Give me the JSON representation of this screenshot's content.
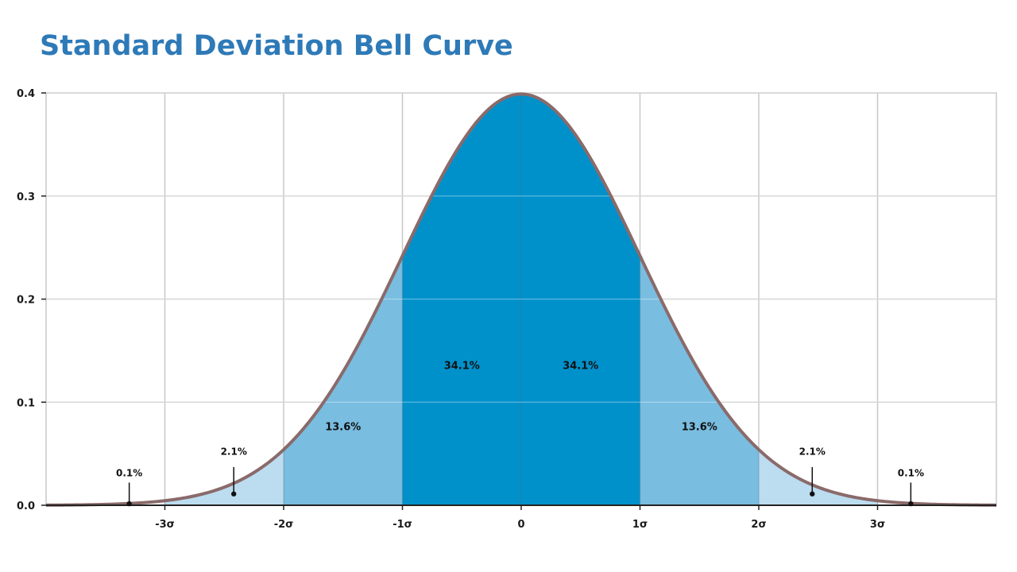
{
  "title": "Standard Deviation Bell Curve",
  "colors": {
    "title": "#2e7ab8",
    "inner": "#0091cb",
    "middle": "#79bde0",
    "outer": "#bcdcf0",
    "curve": "#8a6a6a",
    "grid": "#c8c8c8"
  },
  "chart_data": {
    "type": "area",
    "title": "Standard Deviation Bell Curve",
    "xlim": [
      -4,
      4
    ],
    "ylim": [
      0,
      0.4
    ],
    "yticks": [
      "0.0",
      "0.1",
      "0.2",
      "0.3",
      "0.4"
    ],
    "ytick_values": [
      0,
      0.1,
      0.2,
      0.3,
      0.4
    ],
    "xticks": [
      "-3σ",
      "-2σ",
      "-1σ",
      "0",
      "1σ",
      "2σ",
      "3σ"
    ],
    "xtick_values": [
      -3,
      -2,
      -1,
      0,
      1,
      2,
      3
    ],
    "grid": true,
    "curve": "standard normal density",
    "bands": [
      {
        "label": "0.1%",
        "from": -4,
        "to": -3,
        "shade": "none",
        "marker_x": -3.3
      },
      {
        "label": "2.1%",
        "from": -3,
        "to": -2,
        "shade": "outer",
        "marker_x": -2.42
      },
      {
        "label": "13.6%",
        "from": -2,
        "to": -1,
        "shade": "middle"
      },
      {
        "label": "34.1%",
        "from": -1,
        "to": 0,
        "shade": "inner"
      },
      {
        "label": "34.1%",
        "from": 0,
        "to": 1,
        "shade": "inner"
      },
      {
        "label": "13.6%",
        "from": 1,
        "to": 2,
        "shade": "middle"
      },
      {
        "label": "2.1%",
        "from": 2,
        "to": 3,
        "shade": "outer",
        "marker_x": 2.45
      },
      {
        "label": "0.1%",
        "from": 3,
        "to": 4,
        "shade": "none",
        "marker_x": 3.28
      }
    ]
  }
}
